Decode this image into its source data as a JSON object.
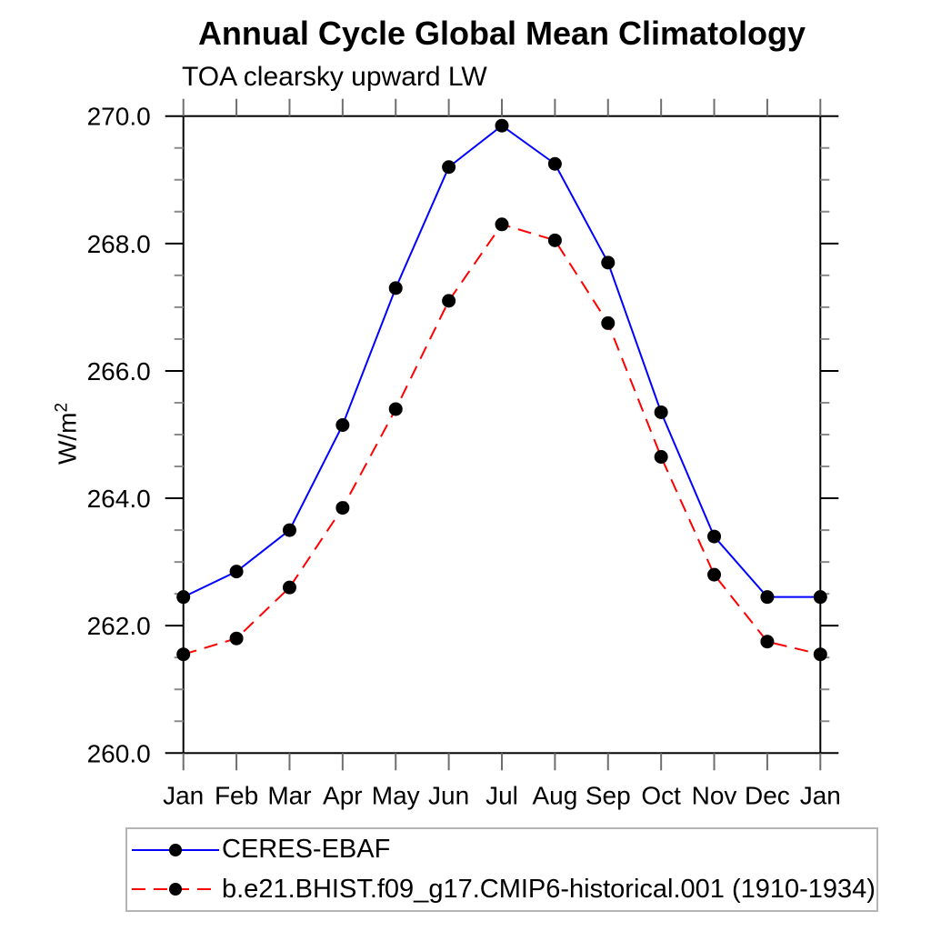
{
  "chart_data": {
    "type": "line",
    "title": "Annual Cycle Global Mean Climatology",
    "subtitle": "TOA clearsky upward LW",
    "ylabel": "W/m²",
    "ylabel_parts": {
      "base": "W/m",
      "exp": "2"
    },
    "x_categories": [
      "Jan",
      "Feb",
      "Mar",
      "Apr",
      "May",
      "Jun",
      "Jul",
      "Aug",
      "Sep",
      "Oct",
      "Nov",
      "Dec",
      "Jan"
    ],
    "ylim": [
      260.0,
      270.0
    ],
    "ytick_major_interval": 2.0,
    "ytick_minor_interval": 0.5,
    "ytick_labels": [
      "260.0",
      "262.0",
      "264.0",
      "266.0",
      "268.0",
      "270.0"
    ],
    "grid": false,
    "legend_position": "bottom-left-box",
    "axis_color": "#000000",
    "minor_tick_color": "#8a8a8a",
    "month_tick_color": "#6e6e6e",
    "series": [
      {
        "name": "CERES-EBAF",
        "line_color": "#0000ff",
        "line_style": "solid",
        "marker": "filled-circle",
        "marker_color": "#000000",
        "values": [
          262.45,
          262.85,
          263.5,
          265.15,
          267.3,
          269.2,
          269.85,
          269.25,
          267.7,
          265.35,
          263.4,
          262.45,
          262.45
        ]
      },
      {
        "name": "b.e21.BHIST.f09_g17.CMIP6-historical.001 (1910-1934)",
        "line_color": "#ff0000",
        "line_style": "dashed",
        "marker": "filled-circle",
        "marker_color": "#000000",
        "values": [
          261.55,
          261.8,
          262.6,
          263.85,
          265.4,
          267.1,
          268.3,
          268.05,
          266.75,
          264.65,
          262.8,
          261.75,
          261.55
        ]
      }
    ]
  }
}
